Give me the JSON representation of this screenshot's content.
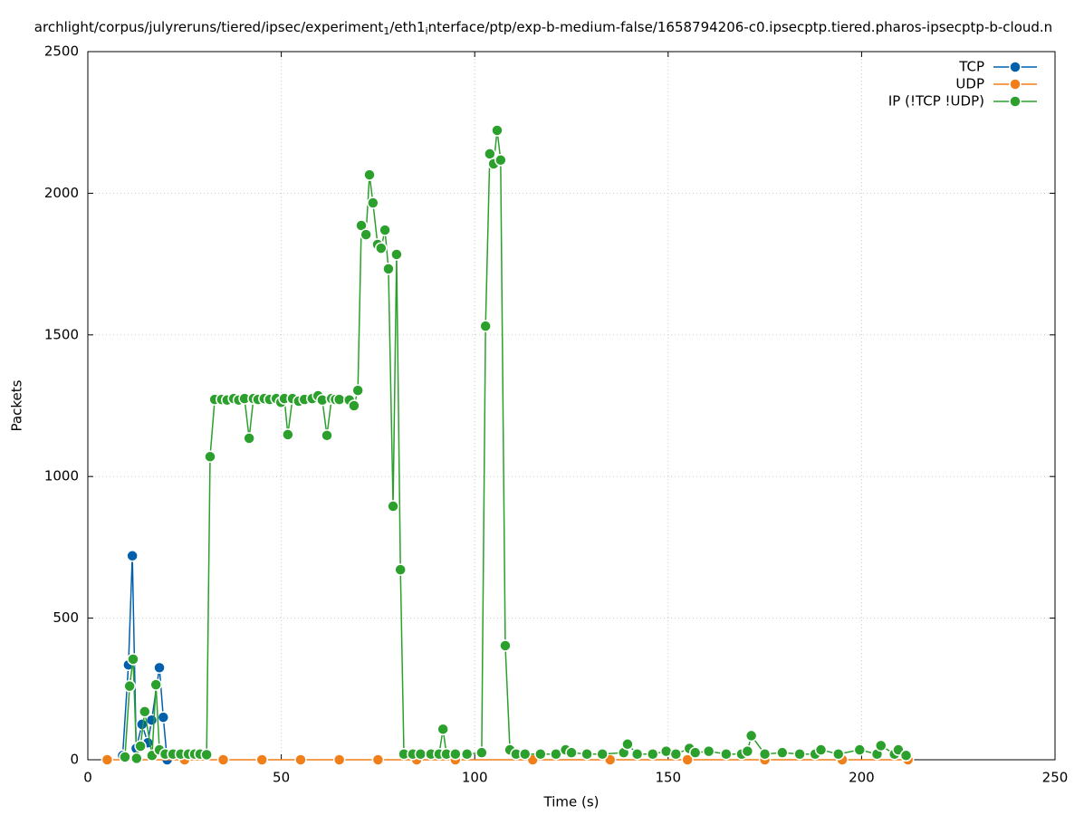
{
  "chart_data": {
    "type": "line",
    "title": [
      {
        "text": "archlight/corpus/julyreruns/tiered/ipsec/experiment"
      },
      {
        "text": "1",
        "subscript": true
      },
      {
        "text": "/eth1"
      },
      {
        "text": "i",
        "subscript": true
      },
      {
        "text": "nterface/ptp/exp-b-medium-false/1658794206-c0.ipsecptp.tiered.pharos-ipsecptp-b-cloud.n"
      }
    ],
    "xlabel": "Time (s)",
    "ylabel": "Packets",
    "xlim": [
      0,
      250
    ],
    "ylim": [
      0,
      2500
    ],
    "xticks": [
      0,
      50,
      100,
      150,
      200,
      250
    ],
    "yticks": [
      0,
      500,
      1000,
      1500,
      2000,
      2500
    ],
    "grid": true,
    "legend": "upper right",
    "series": [
      {
        "name": "TCP",
        "color": "#0060ad",
        "x": [
          9,
          10.5,
          11.5,
          12.5,
          14,
          15.5,
          16.5,
          18.5,
          19.5,
          20.5
        ],
        "values": [
          15,
          335,
          720,
          40,
          125,
          60,
          140,
          325,
          150,
          0
        ]
      },
      {
        "name": "UDP",
        "color": "#f07f1a",
        "x": [
          5,
          25,
          35,
          45,
          55,
          65,
          75,
          85,
          95,
          115,
          135,
          155,
          175,
          195,
          212
        ],
        "values": [
          0,
          0,
          0,
          0,
          0,
          0,
          0,
          0,
          0,
          0,
          0,
          0,
          0,
          0,
          0
        ]
      },
      {
        "name": "IP (!TCP  !UDP)",
        "color": "#2ca02c",
        "x": [
          9.6,
          10.8,
          11.7,
          12.6,
          13.6,
          14.7,
          16.6,
          17.6,
          18.5,
          20,
          22,
          24,
          26,
          27.6,
          29,
          30.7,
          31.6,
          32.8,
          34.6,
          36,
          37.7,
          39,
          40.5,
          41.7,
          42.8,
          44,
          45.6,
          47,
          48.7,
          49.9,
          50.8,
          51.7,
          52.9,
          54.5,
          56,
          58,
          59.5,
          60.6,
          61.8,
          63,
          64,
          65,
          67.6,
          68.8,
          69.8,
          70.7,
          71.9,
          72.8,
          73.7,
          74.9,
          75.8,
          76.8,
          77.7,
          78.9,
          79.8,
          80.8,
          81.7,
          84,
          86,
          88.7,
          90.8,
          91.8,
          92.7,
          95,
          98,
          101.8,
          102.8,
          103.9,
          104.9,
          105.8,
          106.7,
          107.9,
          109.1,
          110.7,
          113,
          117,
          121,
          123.5,
          125,
          129,
          133,
          138.5,
          139.5,
          142,
          146,
          149.5,
          152,
          155.5,
          157,
          160.5,
          165,
          169,
          170.5,
          171.5,
          175,
          179.5,
          184,
          188,
          189.5,
          194,
          199.5,
          204,
          205,
          208.5,
          209.5,
          211.5
        ],
        "values": [
          10,
          260,
          355,
          5,
          48,
          170,
          15,
          265,
          35,
          20,
          20,
          20,
          20,
          20,
          20,
          18,
          1070,
          1272,
          1272,
          1270,
          1275,
          1270,
          1275,
          1135,
          1275,
          1272,
          1275,
          1272,
          1275,
          1262,
          1275,
          1148,
          1275,
          1266,
          1272,
          1275,
          1285,
          1270,
          1145,
          1275,
          1272,
          1272,
          1270,
          1250,
          1304,
          1886,
          1854,
          2065,
          1966,
          1819,
          1806,
          1870,
          1733,
          895,
          1784,
          671,
          20,
          20,
          20,
          20,
          20,
          108,
          20,
          20,
          20,
          25,
          1531,
          2139,
          2104,
          2222,
          2117,
          403,
          35,
          20,
          20,
          20,
          20,
          35,
          25,
          20,
          20,
          25,
          55,
          20,
          20,
          30,
          20,
          40,
          25,
          30,
          20,
          20,
          30,
          85,
          20,
          25,
          20,
          20,
          35,
          20,
          35,
          20,
          50,
          20,
          35,
          15
        ]
      }
    ]
  }
}
